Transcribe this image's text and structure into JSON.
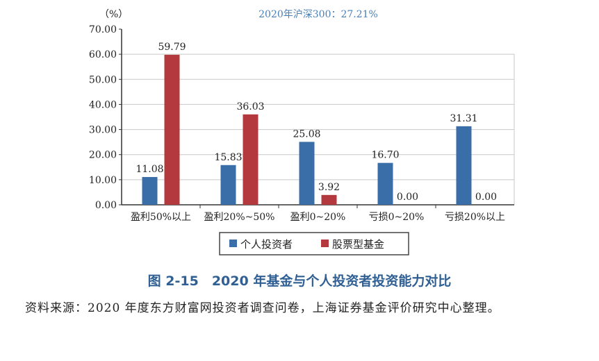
{
  "chart_data": {
    "type": "bar",
    "title": "",
    "annotation": "2020年沪深300：27.21%",
    "ylabel": "（%）",
    "xlabel": "",
    "ylim": [
      0,
      70
    ],
    "yticks": [
      "0.00",
      "10.00",
      "20.00",
      "30.00",
      "40.00",
      "50.00",
      "60.00",
      "70.00"
    ],
    "grid": true,
    "legend_placement": "bottom",
    "categories": [
      "盈利50%以上",
      "盈利20%~50%",
      "盈利0~20%",
      "亏损0~20%",
      "亏损20%以上"
    ],
    "series": [
      {
        "name": "个人投资者",
        "color": "#3a6ea8",
        "values": [
          11.08,
          15.83,
          25.08,
          16.7,
          31.31
        ],
        "labels": [
          "11.08",
          "15.83",
          "25.08",
          "16.70",
          "31.31"
        ]
      },
      {
        "name": "股票型基金",
        "color": "#b4393f",
        "values": [
          59.79,
          36.03,
          3.92,
          0.0,
          0.0
        ],
        "labels": [
          "59.79",
          "36.03",
          "3.92",
          "0.00",
          "0.00"
        ]
      }
    ]
  },
  "caption": "图 2-15　2020 年基金与个人投资者投资能力对比",
  "source": "资料来源：2020 年度东方财富网投资者调查问卷，上海证券基金评价研究中心整理。"
}
